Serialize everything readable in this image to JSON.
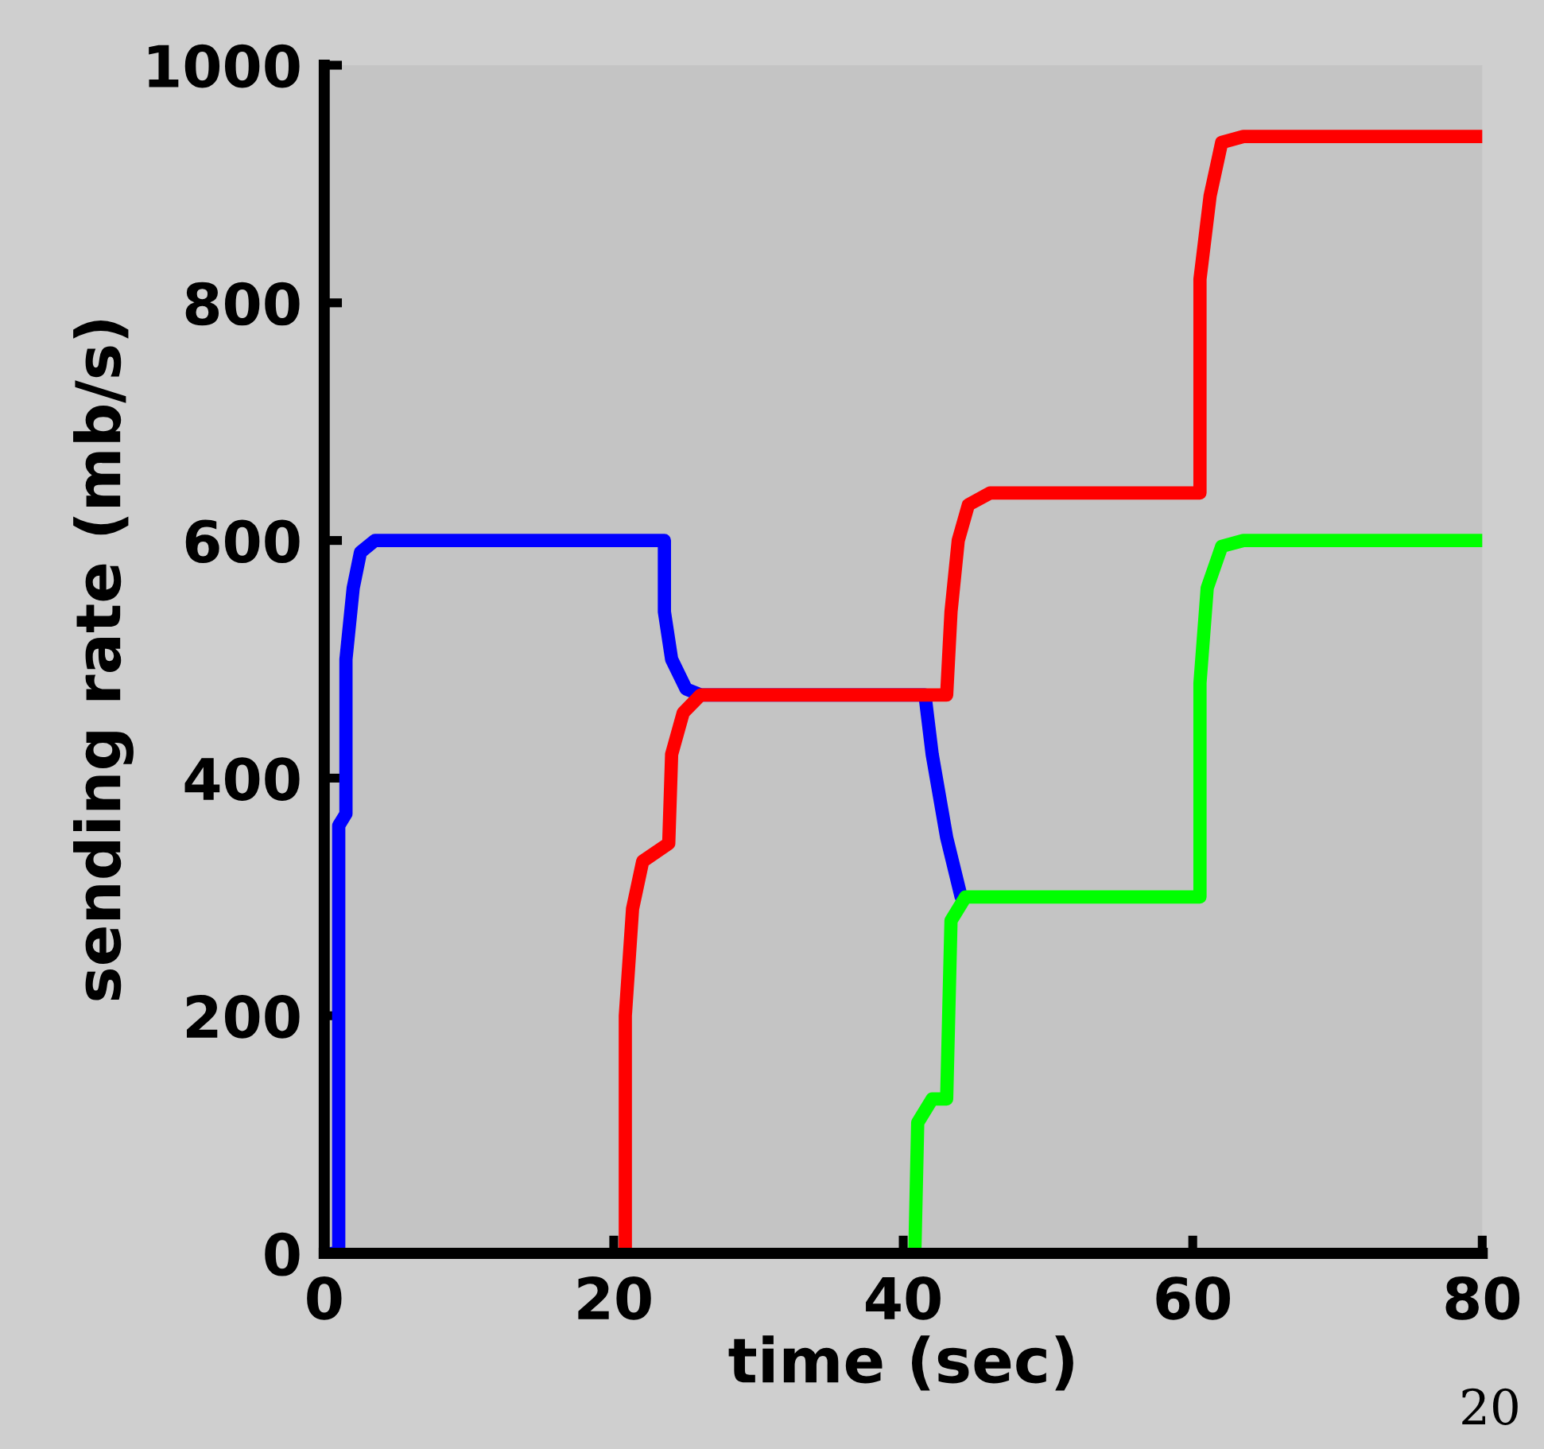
{
  "chart_data": {
    "type": "line",
    "xlabel": "time (sec)",
    "ylabel": "sending rate (mb/s)",
    "xlim": [
      0,
      80
    ],
    "ylim": [
      0,
      1000
    ],
    "xticks": [
      0,
      20,
      40,
      60,
      80
    ],
    "yticks": [
      0,
      200,
      400,
      600,
      800,
      1000
    ],
    "grid": false,
    "line_style": "solid",
    "series": [
      {
        "color": "#0000ff",
        "x": [
          0.5,
          1,
          1,
          1.5,
          1.5,
          2,
          2.5,
          3.5,
          23.5,
          23.5,
          24,
          25,
          26,
          41.5,
          42,
          43,
          44
        ],
        "values": [
          0,
          0,
          360,
          370,
          500,
          560,
          590,
          600,
          600,
          540,
          500,
          475,
          470,
          470,
          420,
          350,
          300
        ]
      },
      {
        "color": "#ff0000",
        "x": [
          20.8,
          20.8,
          21.3,
          22,
          23.8,
          24,
          24.8,
          26,
          43,
          43.3,
          43.8,
          44.5,
          46,
          60.5,
          60.5,
          61.2,
          62,
          63.5,
          80
        ],
        "values": [
          0,
          200,
          290,
          330,
          345,
          420,
          455,
          470,
          470,
          540,
          600,
          630,
          640,
          640,
          820,
          890,
          935,
          940,
          940
        ]
      },
      {
        "color": "#00ff00",
        "x": [
          40.8,
          41,
          42,
          43,
          43.3,
          44.3,
          45.5,
          60.5,
          60.5,
          61,
          62,
          63.5,
          80
        ],
        "values": [
          0,
          110,
          130,
          130,
          280,
          300,
          300,
          300,
          480,
          560,
          595,
          600,
          600
        ]
      }
    ],
    "annotations": [
      "20"
    ]
  }
}
